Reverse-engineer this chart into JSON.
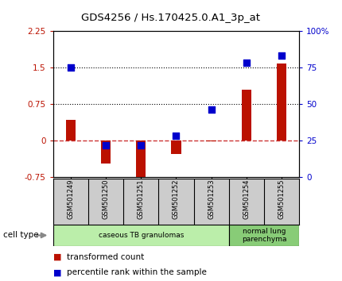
{
  "title": "GDS4256 / Hs.170425.0.A1_3p_at",
  "samples": [
    "GSM501249",
    "GSM501250",
    "GSM501251",
    "GSM501252",
    "GSM501253",
    "GSM501254",
    "GSM501255"
  ],
  "transformed_count": [
    0.42,
    -0.47,
    -0.82,
    -0.27,
    -0.02,
    1.05,
    1.58
  ],
  "percentile_rank": [
    75,
    22,
    22,
    28,
    46,
    78,
    83
  ],
  "ylim_left": [
    -0.75,
    2.25
  ],
  "ylim_right": [
    0,
    100
  ],
  "yticks_left": [
    -0.75,
    0,
    0.75,
    1.5,
    2.25
  ],
  "yticks_right": [
    0,
    25,
    50,
    75,
    100
  ],
  "ytick_labels_left": [
    "-0.75",
    "0",
    "0.75",
    "1.5",
    "2.25"
  ],
  "ytick_labels_right": [
    "0",
    "25",
    "50",
    "75",
    "100%"
  ],
  "hlines": [
    0.75,
    1.5
  ],
  "bar_color": "#BB1100",
  "dot_color": "#0000CC",
  "groups": [
    {
      "label": "caseous TB granulomas",
      "samples": [
        0,
        1,
        2,
        3,
        4
      ],
      "color": "#BBEEAA"
    },
    {
      "label": "normal lung\nparenchyma",
      "samples": [
        5,
        6
      ],
      "color": "#88CC77"
    }
  ],
  "cell_type_label": "cell type",
  "legend_bar_label": "transformed count",
  "legend_dot_label": "percentile rank within the sample",
  "bg_color": "#FFFFFF",
  "plot_bg_color": "#FFFFFF",
  "zero_line_color": "#CC3333",
  "hline_color": "#000000",
  "bar_width": 0.28,
  "dot_size": 30
}
